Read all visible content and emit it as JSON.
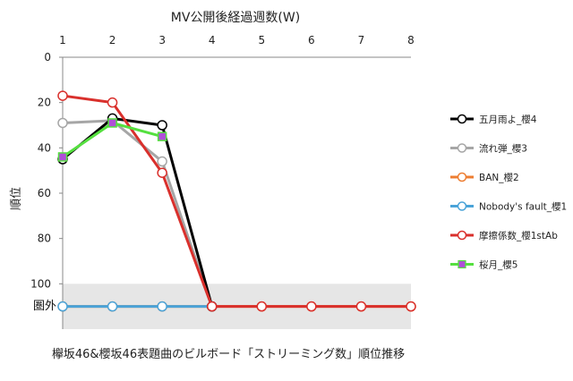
{
  "chart_data": {
    "type": "line",
    "title": "MV公開後経過週数(W)",
    "caption": "欅坂46&櫻坂46表題曲のビルボード「ストリーミング数」順位推移",
    "xlabel": "",
    "ylabel": "順位",
    "x": [
      1,
      2,
      3,
      4,
      5,
      6,
      7,
      8
    ],
    "x_tick_labels": [
      "1",
      "2",
      "3",
      "4",
      "5",
      "6",
      "7",
      "8"
    ],
    "y_tick_values": [
      0,
      20,
      40,
      60,
      80,
      100
    ],
    "y_tick_labels": [
      "0",
      "20",
      "40",
      "60",
      "80",
      "100"
    ],
    "ylim": [
      0,
      120
    ],
    "y_inverted": true,
    "out_of_chart_label": "圏外",
    "out_of_chart_value": 110,
    "out_of_chart_band_from": 100,
    "series": [
      {
        "name": "五月雨よ_櫻4",
        "color": "#000000",
        "marker_fill": "#ffffff",
        "values": [
          45,
          27,
          30,
          110,
          null,
          null,
          null,
          null
        ]
      },
      {
        "name": "流れ弾_櫻3",
        "color": "#a6a6a6",
        "marker_fill": "#ffffff",
        "values": [
          29,
          28,
          46,
          110,
          null,
          null,
          null,
          null
        ]
      },
      {
        "name": "BAN_櫻2",
        "color": "#ed7d31",
        "marker_fill": "#ffffff",
        "values": [
          110,
          110,
          110,
          110,
          110,
          110,
          110,
          110
        ]
      },
      {
        "name": "Nobody's fault_櫻1",
        "color": "#4aa3d8",
        "marker_fill": "#ffffff",
        "values": [
          110,
          110,
          110,
          110,
          null,
          null,
          null,
          null
        ]
      },
      {
        "name": "摩擦係数_櫻1stAb",
        "color": "#d9302c",
        "marker_fill": "#ffffff",
        "values": [
          17,
          20,
          51,
          110,
          110,
          110,
          110,
          110
        ]
      },
      {
        "name": "桜月_櫻5",
        "color": "#55e03f",
        "marker_fill": "#b04fd8",
        "marker_shape": "square",
        "values": [
          44,
          29,
          35,
          null,
          null,
          null,
          null,
          null
        ]
      }
    ],
    "grid": false,
    "legend_position": "right"
  }
}
